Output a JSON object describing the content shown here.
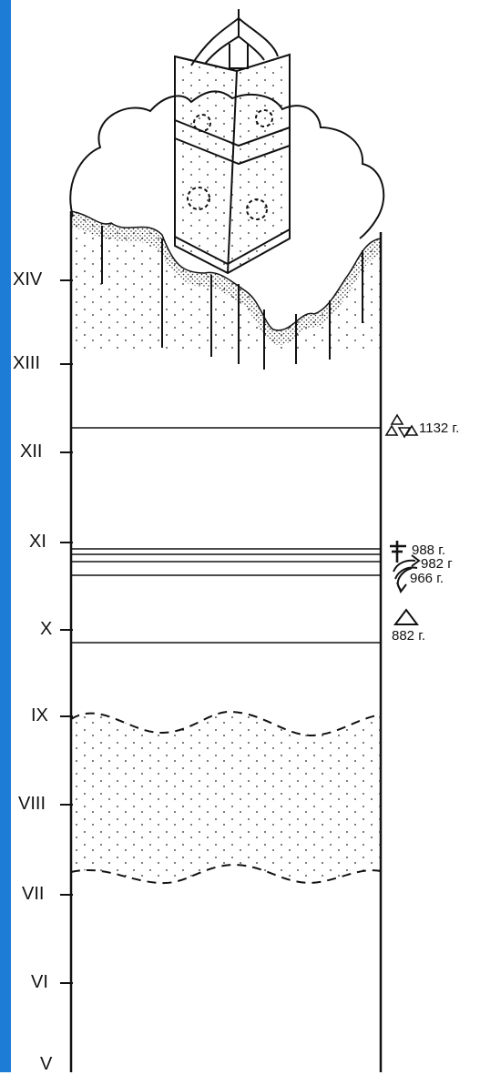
{
  "sidebar": {
    "color": "#1c7cd6"
  },
  "centuries": [
    {
      "label": "XIV"
    },
    {
      "label": "XIII"
    },
    {
      "label": "XII"
    },
    {
      "label": "XI"
    },
    {
      "label": "X"
    },
    {
      "label": "IX"
    },
    {
      "label": "VIII"
    },
    {
      "label": "VII"
    },
    {
      "label": "VI"
    },
    {
      "label": "V"
    }
  ],
  "events": [
    {
      "icon": "triangle-cluster-icon",
      "year": "1132 г."
    },
    {
      "icon": "cross-icon",
      "year": "988 г."
    },
    {
      "icon": "arrow-icon",
      "year": "982 г"
    },
    {
      "icon": "arrow-icon",
      "year": "966 г."
    },
    {
      "icon": "triangle-icon",
      "year": "882 г."
    }
  ]
}
